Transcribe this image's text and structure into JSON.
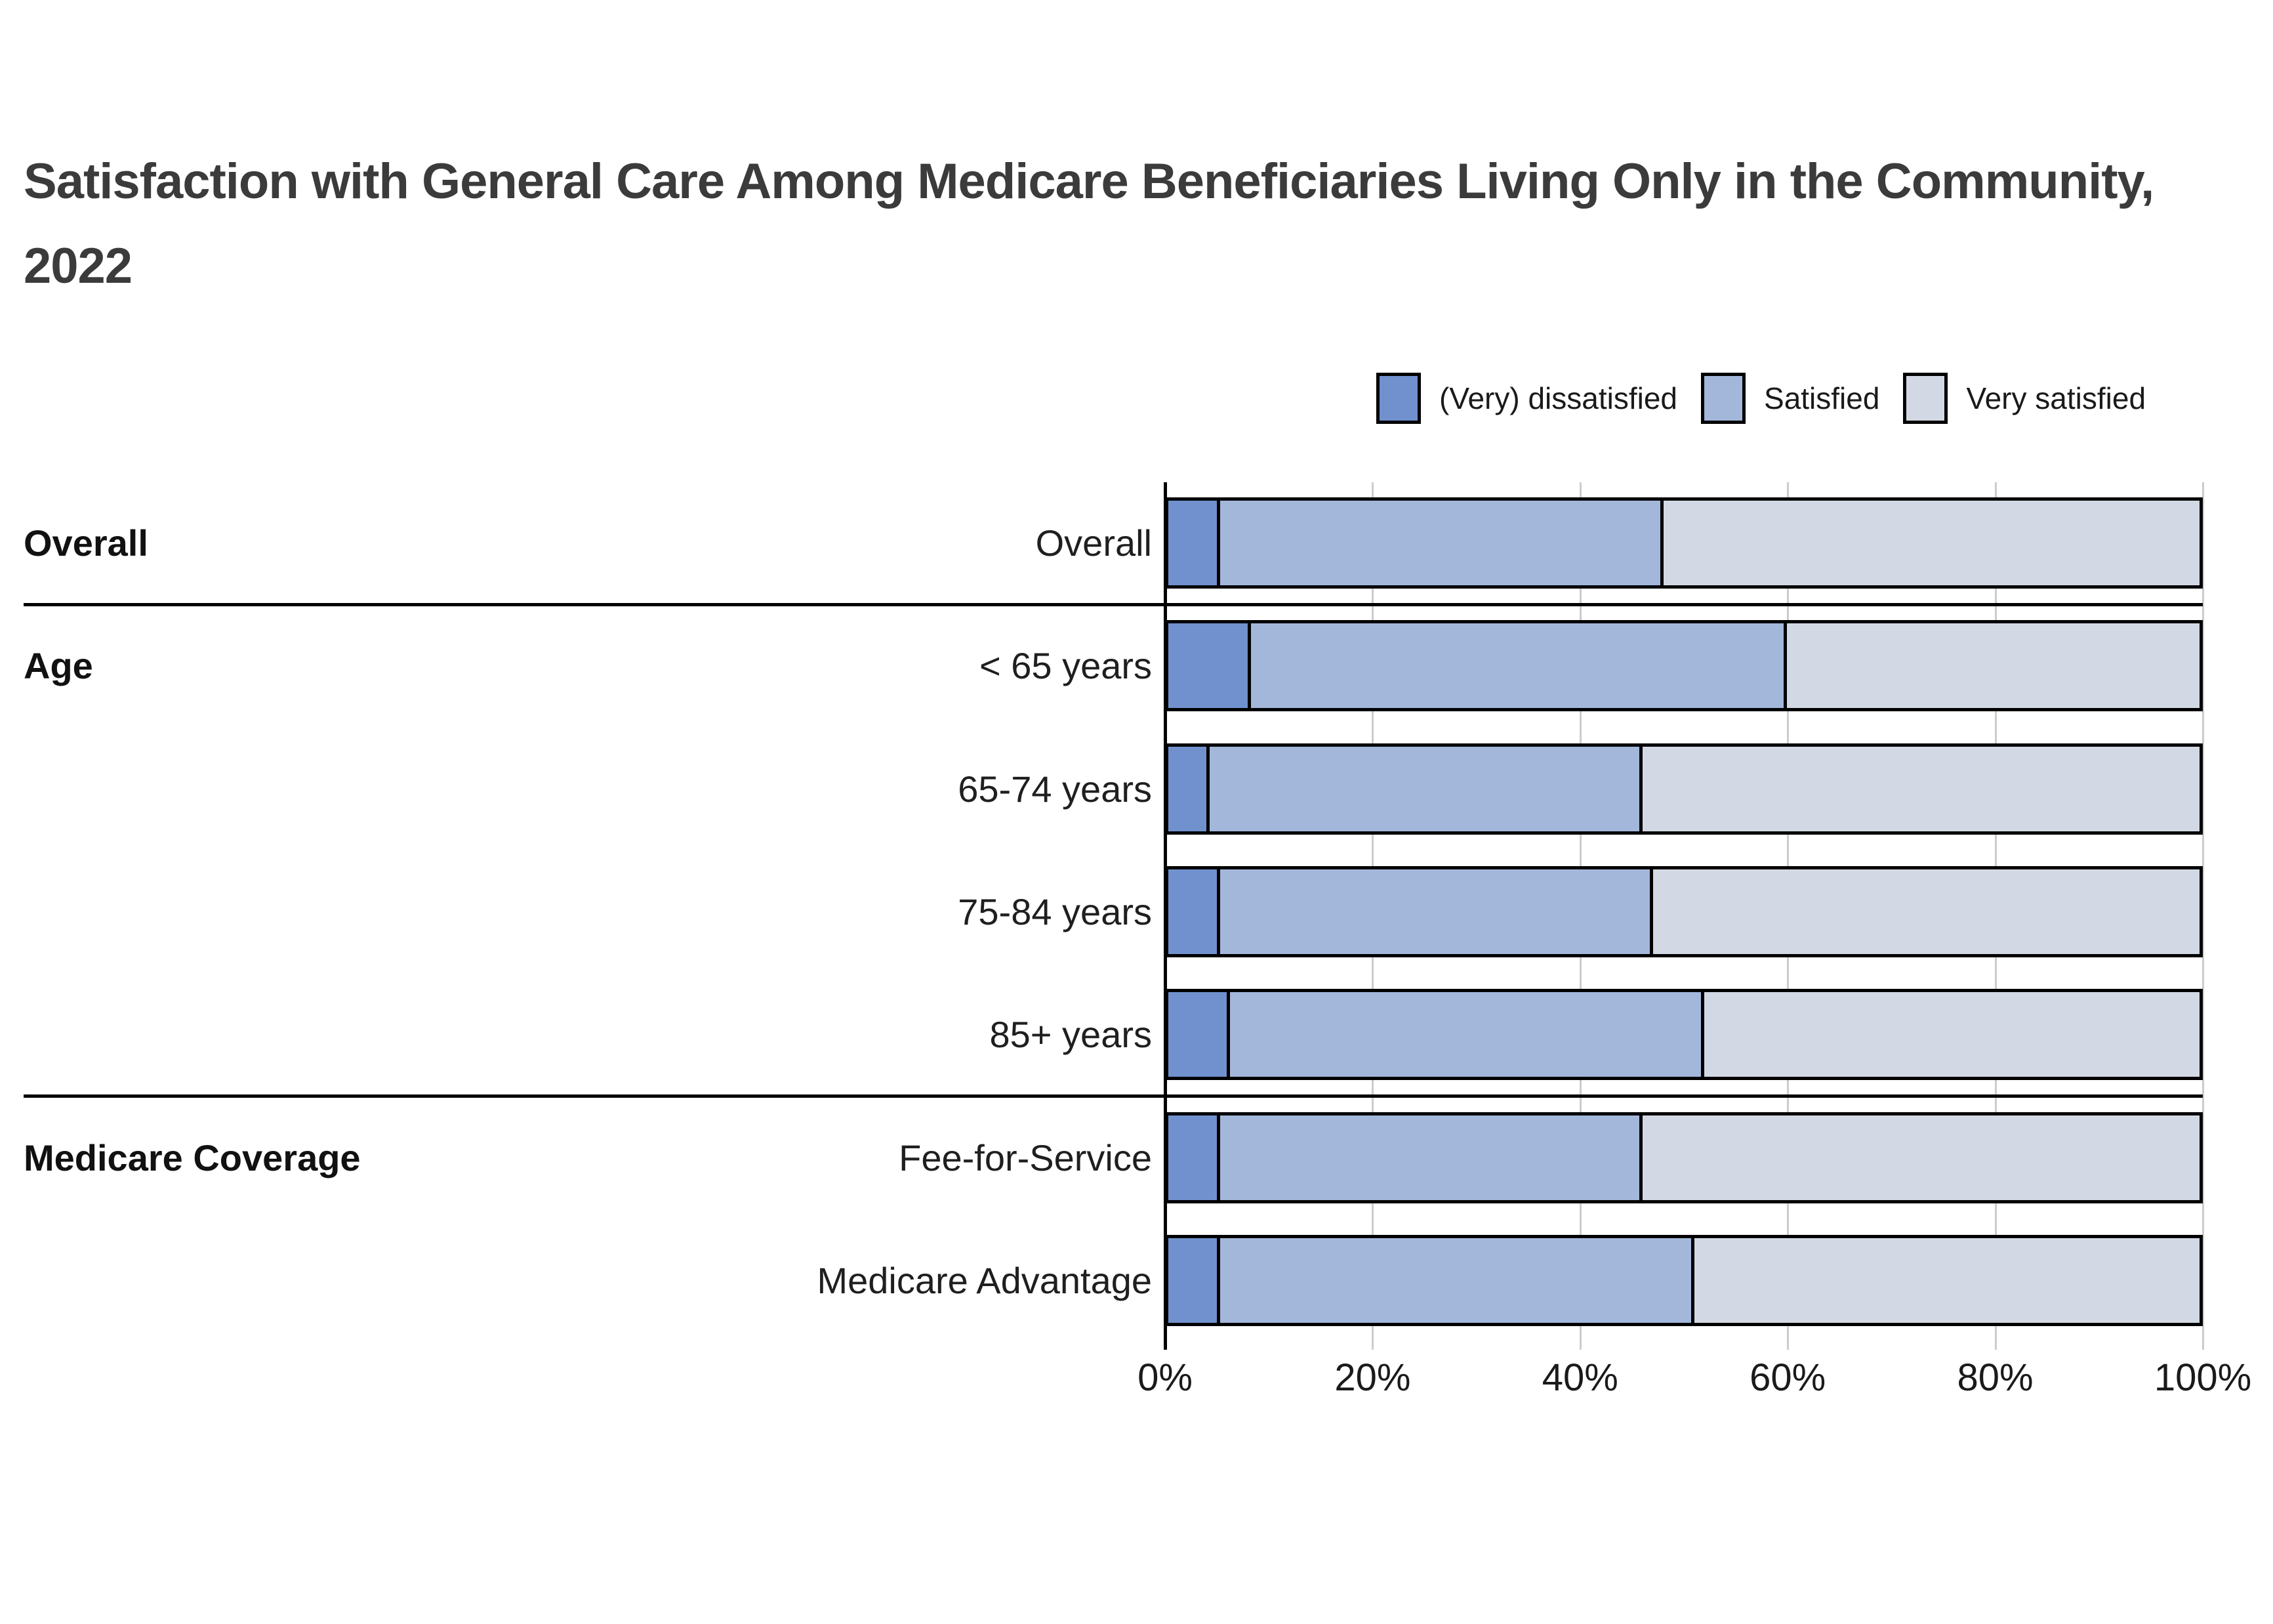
{
  "title": "Satisfaction with General Care Among Medicare Beneficiaries Living Only in the Community, 2022",
  "legend": [
    {
      "label": "(Very) dissatisfied",
      "color": "#7091ce"
    },
    {
      "label": "Satisfied",
      "color": "#a3b7db"
    },
    {
      "label": "Very satisfied",
      "color": "#d3d9e4"
    }
  ],
  "colors": {
    "dissatisfied": "#7091ce",
    "satisfied": "#a3b7db",
    "very_satisfied": "#d3d9e4",
    "bar_border": "#000000",
    "gridline": "#cccccc",
    "title_text": "#3b3b3b",
    "label_text": "#1f1f1f"
  },
  "chart_data": {
    "type": "bar",
    "orientation": "horizontal",
    "stacked": true,
    "unit": "percent",
    "xlim": [
      0,
      100
    ],
    "x_ticks": [
      "0%",
      "20%",
      "40%",
      "60%",
      "80%",
      "100%"
    ],
    "x_tick_values": [
      0,
      20,
      40,
      60,
      80,
      100
    ],
    "grid": true,
    "legend_position": "top-right",
    "series_names": [
      "(Very) dissatisfied",
      "Satisfied",
      "Very satisfied"
    ],
    "groups": [
      {
        "label": "Overall",
        "rows": [
          {
            "label": "Overall",
            "values": [
              5,
              43,
              52
            ]
          }
        ]
      },
      {
        "label": "Age",
        "rows": [
          {
            "label": "< 65 years",
            "values": [
              8,
              52,
              40
            ]
          },
          {
            "label": "65-74 years",
            "values": [
              4,
              42,
              54
            ]
          },
          {
            "label": "75-84 years",
            "values": [
              5,
              42,
              53
            ]
          },
          {
            "label": "85+ years",
            "values": [
              6,
              46,
              48
            ]
          }
        ]
      },
      {
        "label": "Medicare Coverage",
        "rows": [
          {
            "label": "Fee-for-Service",
            "values": [
              5,
              41,
              54
            ]
          },
          {
            "label": "Medicare Advantage",
            "values": [
              5,
              46,
              49
            ]
          }
        ]
      }
    ]
  }
}
